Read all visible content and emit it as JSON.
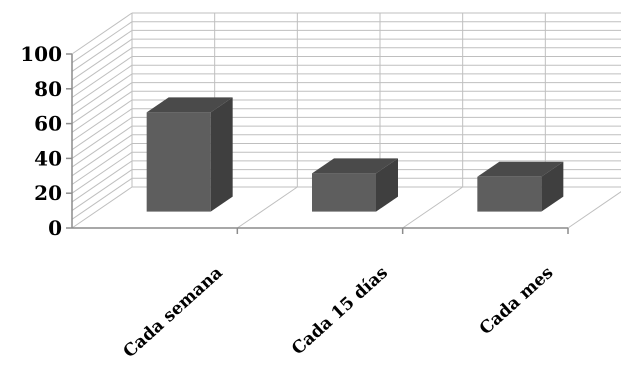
{
  "chart_data": {
    "type": "bar",
    "style": "3d-column",
    "categories": [
      "Cada semana",
      "Cada 15 días",
      "Cada mes"
    ],
    "values": [
      57,
      22,
      20
    ],
    "ylim": [
      0,
      100
    ],
    "yticks": [
      0,
      20,
      40,
      60,
      80,
      100
    ],
    "grid": true,
    "legend": "none",
    "colors": {
      "bar_front": "#5e5e5e",
      "bar_side": "#3f3f3f",
      "bar_top": "#4a4a4a",
      "grid": "#bfbfbf",
      "axis": "#8c8c8c"
    }
  }
}
